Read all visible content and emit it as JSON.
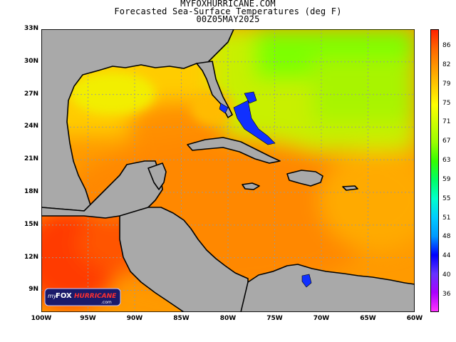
{
  "header": {
    "site": "MYFOXHURRICANE.COM",
    "title": "Forecasted Sea-Surface Temperatures (deg F)",
    "valid_time": "00Z05MAY2025"
  },
  "logo": {
    "prefix": "my",
    "brand": "FOX",
    "name": "HURRICANE",
    "suffix": ".com"
  },
  "map": {
    "lat_labels": [
      "33N",
      "30N",
      "27N",
      "24N",
      "21N",
      "18N",
      "15N",
      "12N",
      "9N"
    ],
    "lon_labels": [
      "100W",
      "95W",
      "90W",
      "85W",
      "80W",
      "75W",
      "70W",
      "65W",
      "60W"
    ],
    "lat_range": [
      7,
      33
    ],
    "lon_range": [
      -100,
      -60
    ],
    "grid_lines": true,
    "land_color": "#a9a9a9",
    "coast_color": "#000000"
  },
  "colorbar": {
    "labels": [
      "86",
      "82",
      "79",
      "75",
      "71",
      "67",
      "63",
      "59",
      "55",
      "51",
      "48",
      "44",
      "40",
      "36"
    ],
    "colors": [
      "#ff33ff",
      "#aa00ff",
      "#6633ff",
      "#0000ff",
      "#0099ff",
      "#00ccff",
      "#00ffcc",
      "#00ff66",
      "#33ff00",
      "#99ff00",
      "#ccff00",
      "#ffff00",
      "#ffcc00",
      "#ff9900",
      "#ff6600",
      "#ff2200"
    ]
  },
  "palette": {
    "warm_core": "#ff3a00",
    "orange": "#ff8a00",
    "yellow": "#f4f000",
    "green": "#7dff00",
    "cool_blue": "#1030ff"
  }
}
